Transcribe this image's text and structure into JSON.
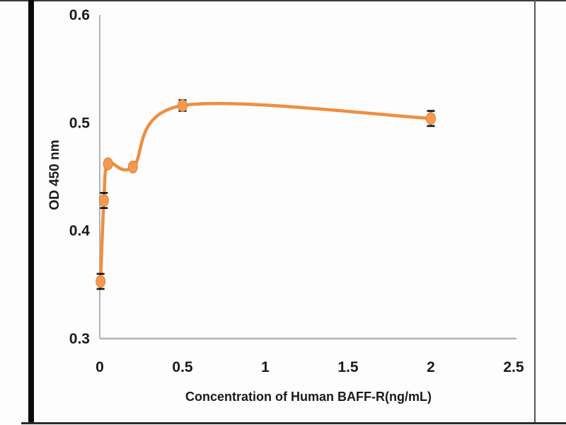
{
  "chart_data": {
    "type": "line",
    "title": "",
    "xlabel": "Concentration of Human BAFF-R(ng/mL)",
    "ylabel": "OD 450 nm",
    "x": [
      0.005,
      0.025,
      0.05,
      0.2,
      0.5,
      2.0
    ],
    "y": [
      0.353,
      0.428,
      0.462,
      0.459,
      0.516,
      0.504
    ],
    "y_err": [
      0.007,
      0.007,
      0.002,
      0.002,
      0.005,
      0.007
    ],
    "xlim": [
      0,
      2.5
    ],
    "ylim": [
      0.3,
      0.6
    ],
    "x_ticks": [
      {
        "v": 0,
        "label": "0"
      },
      {
        "v": 0.5,
        "label": "0.5"
      },
      {
        "v": 1,
        "label": "1"
      },
      {
        "v": 1.5,
        "label": "1.5"
      },
      {
        "v": 2,
        "label": "2"
      },
      {
        "v": 2.5,
        "label": "2.5"
      }
    ],
    "y_ticks": [
      {
        "v": 0.3,
        "label": "0.3"
      },
      {
        "v": 0.4,
        "label": "0.4"
      },
      {
        "v": 0.5,
        "label": "0.5"
      },
      {
        "v": 0.6,
        "label": "0.6"
      }
    ],
    "grid": false,
    "legend": null,
    "smooth": true,
    "marker": "circle"
  },
  "colors": {
    "line": "#EE8E41",
    "marker_fill": "#F29A51",
    "marker_stroke": "#E07F2E",
    "axis": "#B3B3B3",
    "text": "#1A1A1A",
    "error_bar": "#141414",
    "frame_left_bar": "#0B0B0B",
    "frame_line": "#3A3A3A",
    "background": "#FDFDFD"
  }
}
